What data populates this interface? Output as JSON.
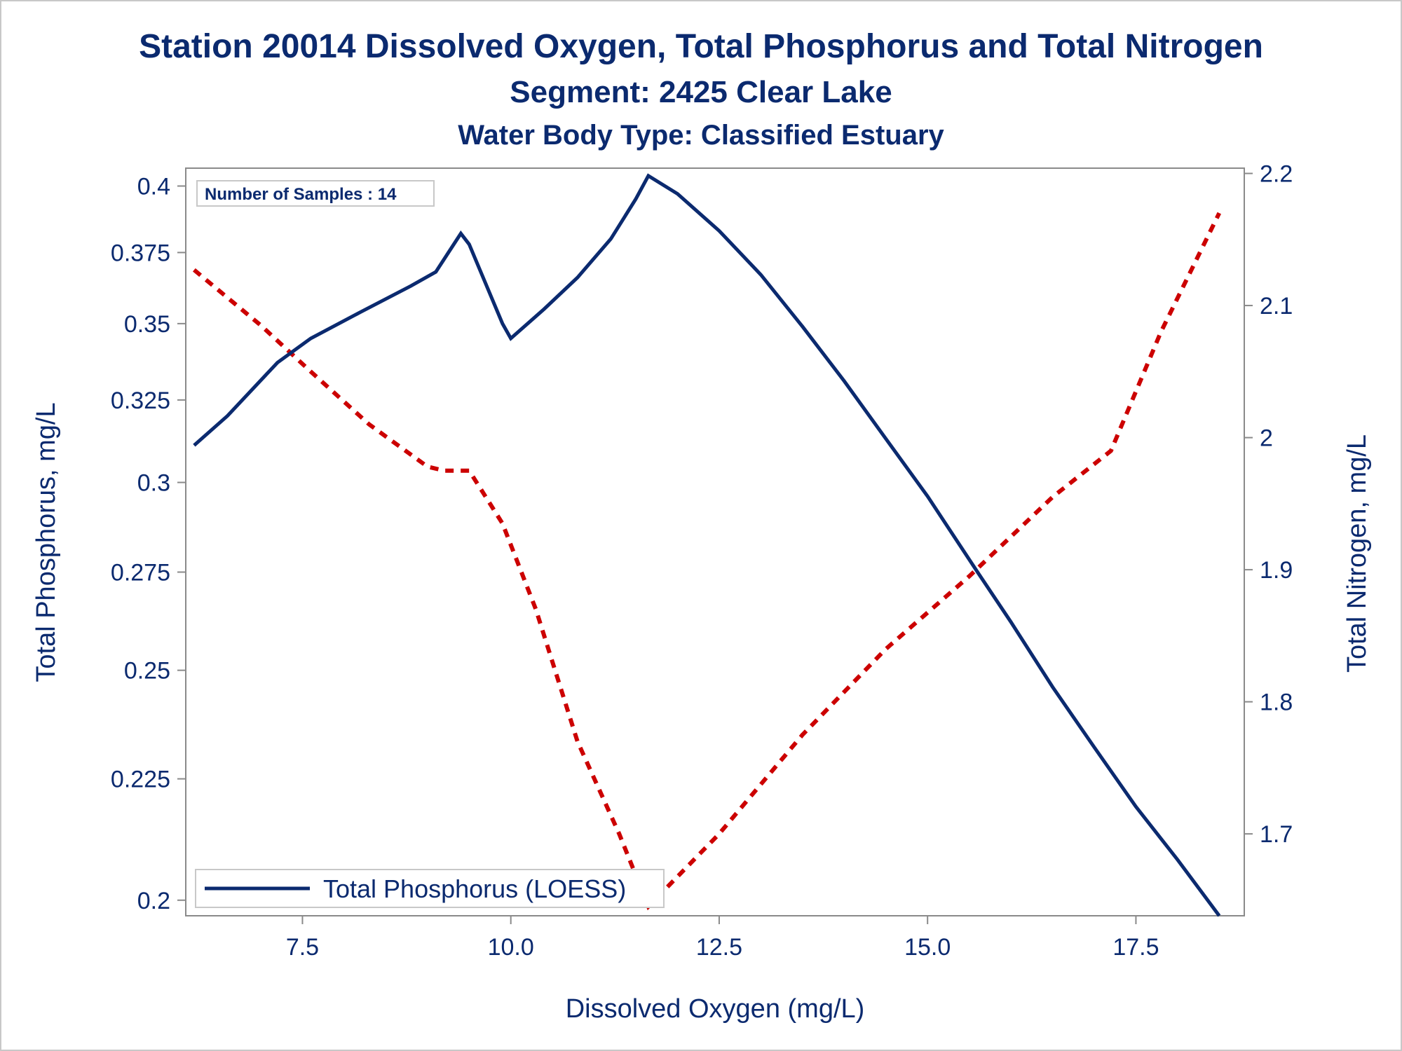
{
  "chart_data": {
    "type": "line",
    "title": "Station 20014  Dissolved Oxygen, Total Phosphorus and Total Nitrogen",
    "subtitle": "Segment: 2425  Clear Lake",
    "subtitle2": "Water Body Type: Classified Estuary",
    "xlabel": "Dissolved Oxygen (mg/L)",
    "ylabel": "Total Phosphorus, mg/L",
    "y2label": "Total Nitrogen, mg/L",
    "xlim": [
      6.1,
      18.8
    ],
    "ylim": [
      0.197,
      0.407
    ],
    "y2lim": [
      1.638,
      2.204
    ],
    "y_scale": "log",
    "x_ticks": [
      "7.5",
      "10.0",
      "12.5",
      "15.0",
      "17.5"
    ],
    "y_ticks": [
      "0.2",
      "0.225",
      "0.25",
      "0.275",
      "0.3",
      "0.325",
      "0.35",
      "0.375",
      "0.4"
    ],
    "y2_ticks": [
      "1.7",
      "1.8",
      "1.9",
      "2",
      "2.1",
      "2.2"
    ],
    "annotation": "Number of Samples : 14",
    "legend": {
      "position": "bottom-left",
      "entries": [
        "Total Phosphorus (LOESS)"
      ]
    },
    "colors": {
      "phosphorus": "#0b2a6f",
      "nitrogen": "#cc0000",
      "text": "#0b2a6f"
    },
    "series": [
      {
        "name": "Total Phosphorus (LOESS)",
        "axis": "left",
        "style": "solid",
        "x": [
          6.2,
          6.6,
          7.2,
          7.6,
          8.2,
          8.8,
          9.1,
          9.4,
          9.5,
          9.9,
          10.0,
          10.4,
          10.8,
          11.2,
          11.5,
          11.65,
          12.0,
          12.5,
          13.0,
          13.5,
          14.0,
          14.5,
          15.0,
          15.6,
          16.0,
          16.5,
          17.0,
          17.5,
          18.0,
          18.5
        ],
        "values": [
          0.311,
          0.32,
          0.337,
          0.345,
          0.354,
          0.363,
          0.368,
          0.382,
          0.378,
          0.35,
          0.345,
          0.355,
          0.366,
          0.38,
          0.395,
          0.404,
          0.397,
          0.383,
          0.367,
          0.349,
          0.331,
          0.313,
          0.296,
          0.275,
          0.262,
          0.246,
          0.232,
          0.219,
          0.208,
          0.197
        ]
      },
      {
        "name": "Total Nitrogen",
        "axis": "right",
        "style": "dashed",
        "x": [
          6.2,
          7.0,
          7.6,
          8.3,
          9.0,
          9.2,
          9.5,
          9.9,
          10.3,
          10.8,
          11.3,
          11.65,
          12.5,
          13.5,
          14.5,
          15.5,
          16.5,
          17.2,
          17.8,
          18.5
        ],
        "values": [
          2.127,
          2.085,
          2.05,
          2.01,
          1.978,
          1.975,
          1.975,
          1.935,
          1.87,
          1.77,
          1.7,
          1.645,
          1.7,
          1.775,
          1.84,
          1.895,
          1.955,
          1.99,
          2.08,
          2.17
        ]
      }
    ]
  }
}
